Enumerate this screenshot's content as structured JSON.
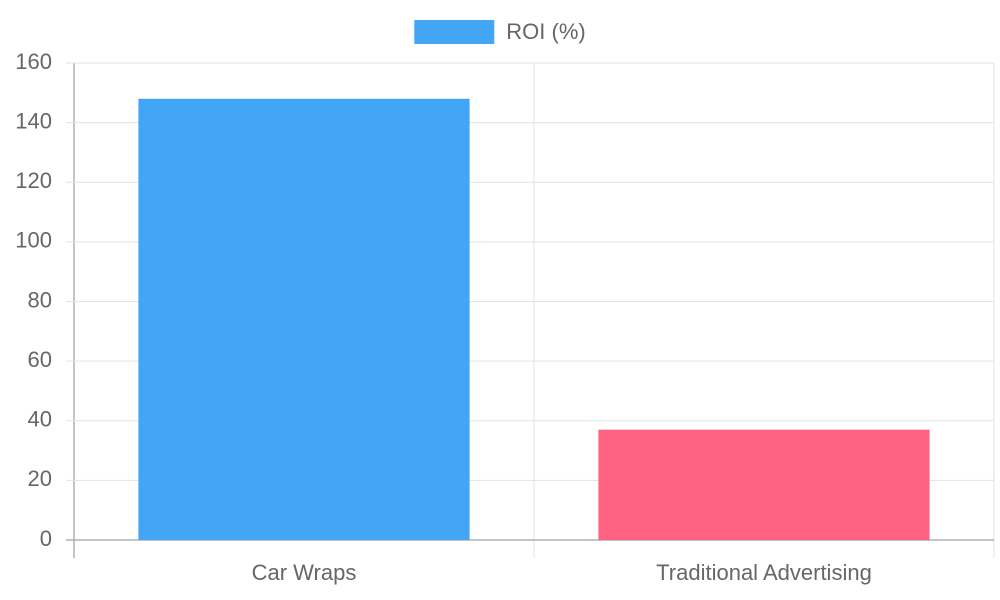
{
  "chart_data": {
    "type": "bar",
    "categories": [
      "Car Wraps",
      "Traditional Advertising"
    ],
    "series": [
      {
        "name": "ROI (%)",
        "colors": [
          "#42a5f5",
          "#ff6384"
        ],
        "values": [
          148,
          37
        ]
      }
    ],
    "ylim": [
      0,
      160
    ],
    "yticks": [
      0,
      20,
      40,
      60,
      80,
      100,
      120,
      140,
      160
    ],
    "grid": true,
    "legend": "top"
  }
}
